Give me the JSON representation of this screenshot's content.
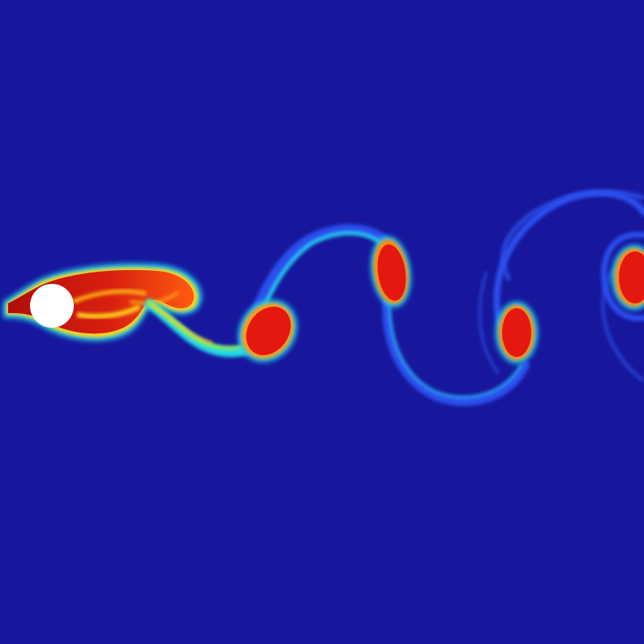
{
  "scene": {
    "kind": "vortex-street-flow-visualization",
    "colormap": "jet",
    "colors": {
      "background": "#17169c",
      "low": "#1f3cf0",
      "cyan": "#27e0f0",
      "green": "#7cf05a",
      "yellow": "#ffe21c",
      "orange": "#ff7a10",
      "red": "#e8160f",
      "darkred": "#a80c0b",
      "obstacle": "#ffffff"
    },
    "obstacle": {
      "shape": "circle",
      "color": "white"
    },
    "vortex_count": 5
  }
}
